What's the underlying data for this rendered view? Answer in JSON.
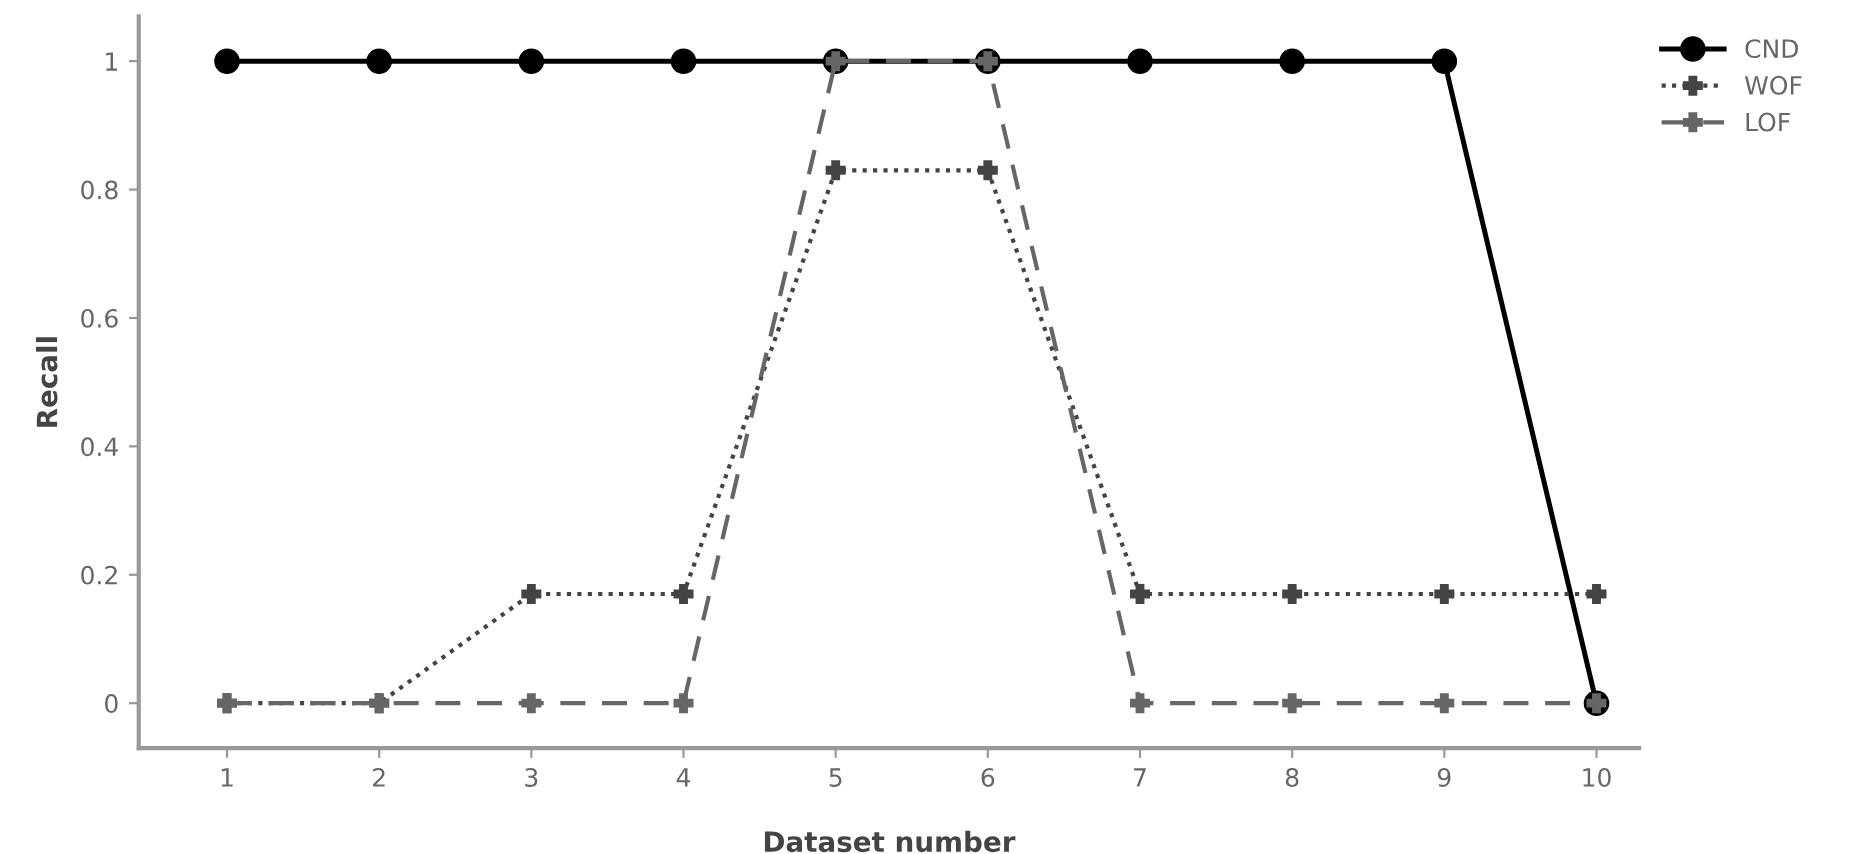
{
  "chart_data": {
    "type": "line",
    "xlabel": "Dataset number",
    "ylabel": "Recall",
    "x": [
      1,
      2,
      3,
      4,
      5,
      6,
      7,
      8,
      9,
      10
    ],
    "series": [
      {
        "name": "CND",
        "color": "#000000",
        "marker": "circle",
        "line_style": "solid",
        "values": [
          1,
          1,
          1,
          1,
          1,
          1,
          1,
          1,
          1,
          0
        ]
      },
      {
        "name": "WOF",
        "color": "#444444",
        "marker": "cross",
        "line_style": "dotted",
        "values": [
          0,
          0,
          0.17,
          0.17,
          0.83,
          0.83,
          0.17,
          0.17,
          0.17,
          0.17
        ]
      },
      {
        "name": "LOF",
        "color": "#666666",
        "marker": "cross",
        "line_style": "dashed",
        "values": [
          0,
          0,
          0,
          0,
          1,
          1,
          0,
          0,
          0,
          0
        ]
      }
    ],
    "xlim": [
      0.42,
      10.28
    ],
    "xticks": [
      1,
      2,
      3,
      4,
      5,
      6,
      7,
      8,
      9,
      10
    ],
    "ylim": [
      -0.07,
      1.07
    ],
    "yticks": [
      0,
      0.2,
      0.4,
      0.6,
      0.8,
      1
    ],
    "grid": false,
    "legend": "top right"
  }
}
